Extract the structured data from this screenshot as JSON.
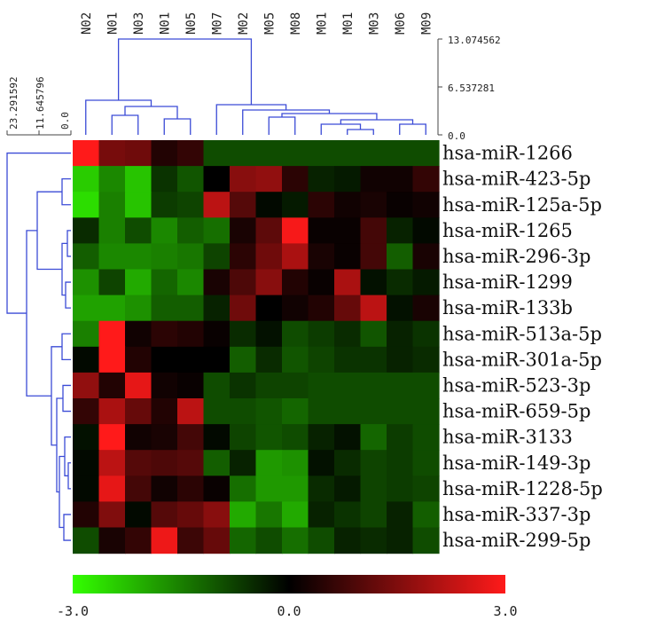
{
  "chart_data": {
    "type": "heatmap",
    "columns": [
      "N02",
      "N01",
      "N03",
      "N01",
      "N05",
      "M07",
      "M02",
      "M05",
      "M08",
      "M01",
      "M01",
      "M03",
      "M06",
      "M09"
    ],
    "rows": [
      "hsa-miR-1266",
      "hsa-miR-423-5p",
      "hsa-miR-125a-5p",
      "hsa-miR-1265",
      "hsa-miR-296-3p",
      "hsa-miR-1299",
      "hsa-miR-133b",
      "hsa-miR-513a-5p",
      "hsa-miR-301a-5p",
      "hsa-miR-523-3p",
      "hsa-miR-659-5p",
      "hsa-miR-3133",
      "hsa-miR-149-3p",
      "hsa-miR-1228-5p",
      "hsa-miR-337-3p",
      "hsa-miR-299-5p"
    ],
    "values": [
      [
        3.0,
        1.4,
        1.3,
        0.4,
        0.6,
        -0.9,
        -0.9,
        -0.9,
        -0.9,
        -0.9,
        -0.9,
        -0.9,
        -0.9,
        -0.9
      ],
      [
        -2.4,
        -1.6,
        -2.3,
        -0.6,
        -1.0,
        0.0,
        1.6,
        1.7,
        0.5,
        -0.4,
        -0.3,
        0.2,
        0.2,
        0.6
      ],
      [
        -2.6,
        -1.5,
        -2.3,
        -0.7,
        -0.8,
        2.2,
        1.0,
        -0.1,
        -0.3,
        0.5,
        0.2,
        0.3,
        0.1,
        0.2
      ],
      [
        -0.5,
        -1.5,
        -0.9,
        -1.6,
        -1.1,
        -1.3,
        0.3,
        1.1,
        2.9,
        0.1,
        0.1,
        0.8,
        -0.4,
        -0.1
      ],
      [
        -1.1,
        -1.6,
        -1.6,
        -1.5,
        -1.4,
        -0.8,
        0.5,
        1.3,
        2.0,
        0.3,
        0.1,
        0.8,
        -1.1,
        0.3
      ],
      [
        -1.7,
        -0.8,
        -2.0,
        -1.2,
        -1.6,
        0.3,
        0.9,
        1.6,
        0.4,
        0.1,
        2.0,
        -0.2,
        -0.5,
        -0.3
      ],
      [
        -1.9,
        -1.9,
        -1.7,
        -1.1,
        -1.1,
        -0.4,
        1.3,
        0.0,
        0.2,
        0.4,
        1.2,
        2.2,
        -0.2,
        0.3
      ],
      [
        -1.5,
        3.0,
        0.2,
        0.5,
        0.4,
        0.1,
        -0.5,
        -0.2,
        -0.9,
        -0.7,
        -0.5,
        -1.0,
        -0.4,
        -0.6
      ],
      [
        -0.1,
        3.0,
        0.4,
        0.0,
        0.0,
        0.0,
        -1.1,
        -0.5,
        -1.0,
        -0.8,
        -0.6,
        -0.6,
        -0.4,
        -0.5
      ],
      [
        1.7,
        0.4,
        2.7,
        0.2,
        0.1,
        -0.9,
        -0.6,
        -0.8,
        -0.8,
        -0.9,
        -0.9,
        -0.9,
        -0.9,
        -0.9
      ],
      [
        0.6,
        2.0,
        1.2,
        0.4,
        2.2,
        -0.9,
        -0.9,
        -1.0,
        -1.2,
        -0.9,
        -0.9,
        -0.9,
        -0.9,
        -0.9
      ],
      [
        -0.2,
        3.0,
        0.2,
        0.3,
        0.8,
        -0.1,
        -0.8,
        -1.0,
        -0.9,
        -0.4,
        -0.2,
        -1.2,
        -0.7,
        -0.9
      ],
      [
        -0.1,
        2.2,
        1.0,
        0.9,
        1.0,
        -1.1,
        -0.4,
        -1.8,
        -1.7,
        -0.2,
        -0.5,
        -0.8,
        -0.7,
        -0.9
      ],
      [
        -0.1,
        2.7,
        0.8,
        0.2,
        0.5,
        0.1,
        -1.3,
        -1.8,
        -1.8,
        -0.5,
        -0.3,
        -0.8,
        -0.7,
        -0.8
      ],
      [
        0.4,
        1.5,
        -0.1,
        1.0,
        1.2,
        1.6,
        -2.0,
        -1.4,
        -2.0,
        -0.4,
        -0.6,
        -0.8,
        -0.4,
        -1.1
      ],
      [
        -0.9,
        0.3,
        0.6,
        2.8,
        0.7,
        1.2,
        -1.2,
        -0.9,
        -1.3,
        -0.9,
        -0.4,
        -0.5,
        -0.4,
        -0.9
      ]
    ],
    "colorbar": {
      "min": -3.0,
      "max": 3.0,
      "tick_labels": [
        "-3.0",
        "0.0",
        "3.0"
      ],
      "low_color": "#33ff00",
      "mid_color": "#000000",
      "high_color": "#ff1a1a"
    },
    "column_dendrogram_scale": [
      "13.074562",
      "6.537281",
      "0.0"
    ],
    "row_dendrogram_scale": [
      "23.291592",
      "11.645796",
      "0.0"
    ],
    "dendrogram_color": "#3b4bd6"
  }
}
